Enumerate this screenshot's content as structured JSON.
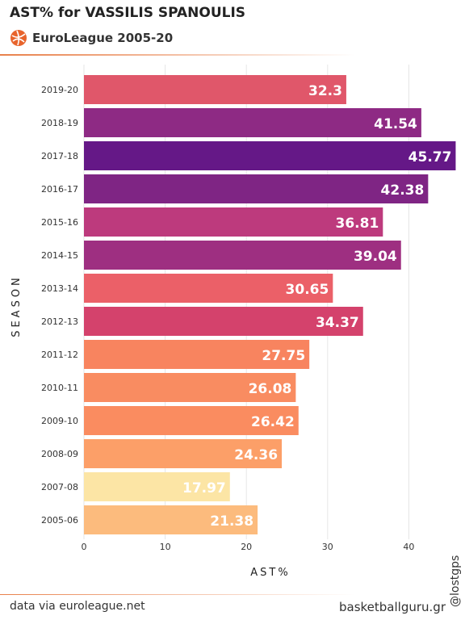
{
  "header": {
    "title": "AST% for VASSILIS SPANOULIS",
    "subtitle": "EuroLeague 2005-20",
    "logo_icon": "euroleague-ball-icon",
    "accent_color": "#e8804a"
  },
  "footer": {
    "source": "data via euroleague.net",
    "site": "basketballguru.gr",
    "handle": "@lostgps"
  },
  "chart_data": {
    "type": "bar",
    "orientation": "horizontal",
    "categories": [
      "2019-20",
      "2018-19",
      "2017-18",
      "2016-17",
      "2015-16",
      "2014-15",
      "2013-14",
      "2012-13",
      "2011-12",
      "2010-11",
      "2009-10",
      "2008-09",
      "2007-08",
      "2005-06"
    ],
    "values": [
      32.3,
      41.54,
      45.77,
      42.38,
      36.81,
      39.04,
      30.65,
      34.37,
      27.75,
      26.08,
      26.42,
      24.36,
      17.97,
      21.38
    ],
    "value_labels": [
      "32.3",
      "41.54",
      "45.77",
      "42.38",
      "36.81",
      "39.04",
      "30.65",
      "34.37",
      "27.75",
      "26.08",
      "26.42",
      "24.36",
      "17.97",
      "21.38"
    ],
    "colors": [
      "#e0576a",
      "#8e2a84",
      "#651887",
      "#7f2584",
      "#bd3a7d",
      "#9e2f81",
      "#eb6068",
      "#d4426c",
      "#f8845f",
      "#f98c61",
      "#fa8c60",
      "#fc9f68",
      "#fce5a5",
      "#fcbb7d"
    ],
    "title": "",
    "xlabel": "AST%",
    "ylabel": "SEASON",
    "xlim": [
      0,
      46
    ],
    "xticks": [
      0,
      10,
      20,
      30,
      40
    ],
    "grid": "vertical",
    "legend": "none"
  }
}
